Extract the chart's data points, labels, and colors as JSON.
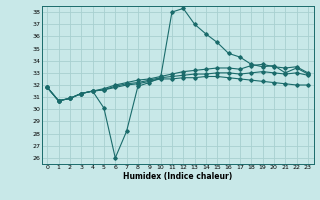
{
  "xlabel": "Humidex (Indice chaleur)",
  "ylabel": "",
  "background_color": "#c8e8e8",
  "grid_color": "#a8d0d0",
  "line_color": "#1a6b6b",
  "xlim": [
    -0.5,
    23.5
  ],
  "ylim": [
    25.5,
    38.5
  ],
  "yticks": [
    26,
    27,
    28,
    29,
    30,
    31,
    32,
    33,
    34,
    35,
    36,
    37,
    38
  ],
  "xticks": [
    0,
    1,
    2,
    3,
    4,
    5,
    6,
    7,
    8,
    9,
    10,
    11,
    12,
    13,
    14,
    15,
    16,
    17,
    18,
    19,
    20,
    21,
    22,
    23
  ],
  "line1": [
    31.8,
    30.7,
    30.9,
    31.3,
    31.5,
    30.1,
    26.0,
    28.2,
    31.9,
    32.2,
    32.6,
    38.0,
    38.3,
    37.0,
    36.2,
    35.5,
    34.6,
    34.3,
    33.7,
    33.5,
    33.6,
    33.0,
    33.4,
    32.9
  ],
  "line2": [
    31.8,
    30.7,
    30.9,
    31.3,
    31.5,
    31.6,
    31.8,
    32.0,
    32.1,
    32.3,
    32.5,
    32.5,
    32.6,
    32.6,
    32.7,
    32.7,
    32.6,
    32.5,
    32.4,
    32.3,
    32.2,
    32.1,
    32.0,
    32.0
  ],
  "line3": [
    31.8,
    30.7,
    30.9,
    31.3,
    31.5,
    31.7,
    32.0,
    32.2,
    32.4,
    32.5,
    32.7,
    32.9,
    33.1,
    33.2,
    33.3,
    33.4,
    33.4,
    33.3,
    33.6,
    33.7,
    33.5,
    33.4,
    33.5,
    33.0
  ],
  "line4": [
    31.8,
    30.7,
    30.9,
    31.3,
    31.5,
    31.6,
    31.9,
    32.1,
    32.2,
    32.4,
    32.6,
    32.7,
    32.8,
    32.9,
    32.9,
    33.0,
    33.0,
    32.9,
    33.0,
    33.1,
    33.0,
    32.9,
    33.0,
    32.8
  ]
}
